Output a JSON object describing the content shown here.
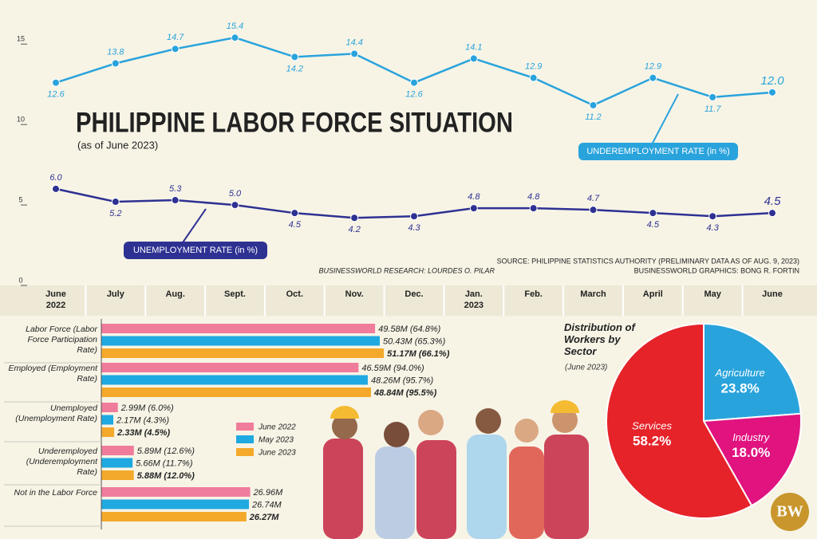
{
  "title": "PHILIPPINE LABOR FORCE SITUATION",
  "subtitle": "(as of June 2023)",
  "source": "SOURCE: PHILIPPINE STATISTICS AUTHORITY (PRELIMINARY DATA AS OF AUG. 9, 2023)",
  "research": "BUSINESSWORLD RESEARCH: LOURDES O. PILAR",
  "graphics": "BUSINESSWORLD GRAPHICS: BONG R. FORTIN",
  "logo": "BW",
  "chart_data": [
    {
      "type": "line",
      "categories": [
        "June 2022",
        "July",
        "Aug.",
        "Sept.",
        "Oct.",
        "Nov.",
        "Dec.",
        "Jan. 2023",
        "Feb.",
        "March",
        "April",
        "May",
        "June"
      ],
      "series": [
        {
          "name": "UNDEREMPLOYMENT RATE (in %)",
          "color": "#29a3dc",
          "values": [
            12.6,
            13.8,
            14.7,
            15.4,
            14.2,
            14.4,
            12.6,
            14.1,
            12.9,
            11.2,
            12.9,
            11.7,
            12.0
          ],
          "value_labels": [
            "12.6",
            "13.8",
            "14.7",
            "15.4",
            "14.2",
            "14.4",
            "12.6",
            "14.1",
            "12.9",
            "11.2",
            "12.9",
            "11.7",
            "12.0"
          ]
        },
        {
          "name": "UNEMPLOYMENT RATE (in %)",
          "color": "#2e3192",
          "values": [
            6.0,
            5.2,
            5.3,
            5.0,
            4.5,
            4.2,
            4.3,
            4.8,
            4.8,
            4.7,
            4.5,
            4.3,
            4.5
          ],
          "value_labels": [
            "6.0",
            "5.2",
            "5.3",
            "5.0",
            "4.5",
            "4.2",
            "4.3",
            "4.8",
            "4.8",
            "4.7",
            "4.5",
            "4.3",
            "4.5"
          ]
        }
      ],
      "ylim": [
        0,
        16.5
      ],
      "yticks": [
        0,
        5,
        10,
        15
      ]
    },
    {
      "type": "hbar",
      "categories": [
        "Labor Force (Labor Force Participation Rate)",
        "Employed (Employment Rate)",
        "Unemployed (Unemployment Rate)",
        "Underemployed (Underemployment Rate)",
        "Not in the Labor Force"
      ],
      "series": [
        {
          "name": "June 2022",
          "color": "#f07c9c",
          "values": [
            49.58,
            46.59,
            2.99,
            5.89,
            26.96
          ],
          "value_labels": [
            "49.58M (64.8%)",
            "46.59M (94.0%)",
            "2.99M (6.0%)",
            "5.89M (12.6%)",
            "26.96M"
          ]
        },
        {
          "name": "May 2023",
          "color": "#1fa9e1",
          "values": [
            50.43,
            48.26,
            2.17,
            5.66,
            26.74
          ],
          "value_labels": [
            "50.43M (65.3%)",
            "48.26M (95.7%)",
            "2.17M (4.3%)",
            "5.66M (11.7%)",
            "26.74M"
          ]
        },
        {
          "name": "June 2023",
          "color": "#f4a92b",
          "values": [
            51.17,
            48.84,
            2.33,
            5.88,
            26.27
          ],
          "value_labels": [
            "51.17M (66.1%)",
            "48.84M (95.5%)",
            "2.33M (4.5%)",
            "5.88M (12.0%)",
            "26.27M"
          ]
        }
      ]
    },
    {
      "type": "pie",
      "title": "Distribution of Workers by Sector",
      "subtitle": "(June 2023)",
      "categories": [
        "Agriculture",
        "Industry",
        "Services"
      ],
      "values": [
        23.8,
        18.0,
        58.2
      ],
      "value_labels": [
        "23.8%",
        "18.0%",
        "58.2%"
      ],
      "colors": [
        "#29a3dc",
        "#e0137f",
        "#e52329"
      ]
    }
  ]
}
